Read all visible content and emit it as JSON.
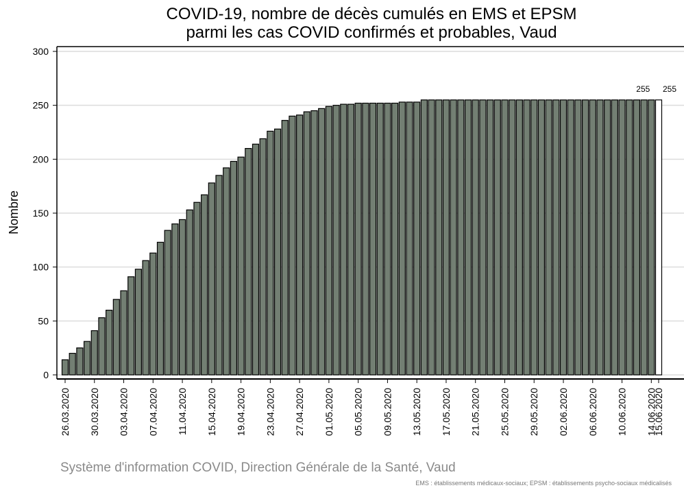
{
  "chart_data": {
    "type": "bar",
    "title": [
      "COVID-19, nombre de décès cumulés en EMS et EPSM",
      "parmi les cas COVID confirmés et probables, Vaud"
    ],
    "y_label": "Nombre",
    "source": "Système d'information COVID, Direction Générale de la Santé, Vaud",
    "note": "EMS : établissements médicaux-sociaux; EPSM : établissements psycho-sociaux médicalisés",
    "categories": [
      "26.03.2020",
      null,
      null,
      null,
      "30.03.2020",
      null,
      null,
      null,
      "03.04.2020",
      null,
      null,
      null,
      "07.04.2020",
      null,
      null,
      null,
      "11.04.2020",
      null,
      null,
      null,
      "15.04.2020",
      null,
      null,
      null,
      "19.04.2020",
      null,
      null,
      null,
      "23.04.2020",
      null,
      null,
      null,
      "27.04.2020",
      null,
      null,
      null,
      "01.05.2020",
      null,
      null,
      null,
      "05.05.2020",
      null,
      null,
      null,
      "09.05.2020",
      null,
      null,
      null,
      "13.05.2020",
      null,
      null,
      null,
      "17.05.2020",
      null,
      null,
      null,
      "21.05.2020",
      null,
      null,
      null,
      "25.05.2020",
      null,
      null,
      null,
      "29.05.2020",
      null,
      null,
      null,
      "02.06.2020",
      null,
      null,
      null,
      "06.06.2020",
      null,
      null,
      null,
      "10.06.2020",
      null,
      null,
      null,
      "14.06.2020",
      "15.06.2020"
    ],
    "values": [
      14,
      20,
      25,
      31,
      41,
      53,
      60,
      70,
      78,
      91,
      98,
      106,
      113,
      123,
      134,
      140,
      144,
      153,
      160,
      167,
      178,
      185,
      192,
      198,
      202,
      210,
      214,
      219,
      226,
      228,
      236,
      240,
      241,
      244,
      245,
      247,
      249,
      250,
      251,
      251,
      252,
      252,
      252,
      252,
      252,
      252,
      253,
      253,
      253,
      255,
      255,
      255,
      255,
      255,
      255,
      255,
      255,
      255,
      255,
      255,
      255,
      255,
      255,
      255,
      255,
      255,
      255,
      255,
      255,
      255,
      255,
      255,
      255,
      255,
      255,
      255,
      255,
      255,
      255,
      255,
      255,
      255
    ],
    "value_labels": [
      null,
      null,
      null,
      null,
      null,
      null,
      null,
      null,
      null,
      null,
      null,
      null,
      null,
      null,
      null,
      null,
      null,
      null,
      null,
      null,
      null,
      null,
      null,
      null,
      null,
      null,
      null,
      null,
      null,
      null,
      null,
      null,
      null,
      null,
      null,
      null,
      null,
      null,
      null,
      null,
      null,
      null,
      null,
      null,
      null,
      null,
      null,
      null,
      null,
      null,
      null,
      null,
      null,
      null,
      null,
      null,
      null,
      null,
      null,
      null,
      null,
      null,
      null,
      null,
      null,
      null,
      null,
      null,
      null,
      null,
      null,
      null,
      null,
      null,
      null,
      null,
      null,
      null,
      null,
      null,
      "255",
      "255"
    ],
    "colors": [
      "#737f73",
      "#737f73",
      "#737f73",
      "#737f73",
      "#737f73",
      "#737f73",
      "#737f73",
      "#737f73",
      "#737f73",
      "#737f73",
      "#737f73",
      "#737f73",
      "#737f73",
      "#737f73",
      "#737f73",
      "#737f73",
      "#737f73",
      "#737f73",
      "#737f73",
      "#737f73",
      "#737f73",
      "#737f73",
      "#737f73",
      "#737f73",
      "#737f73",
      "#737f73",
      "#737f73",
      "#737f73",
      "#737f73",
      "#737f73",
      "#737f73",
      "#737f73",
      "#737f73",
      "#737f73",
      "#737f73",
      "#737f73",
      "#737f73",
      "#737f73",
      "#737f73",
      "#737f73",
      "#737f73",
      "#737f73",
      "#737f73",
      "#737f73",
      "#737f73",
      "#737f73",
      "#737f73",
      "#737f73",
      "#737f73",
      "#737f73",
      "#737f73",
      "#737f73",
      "#737f73",
      "#737f73",
      "#737f73",
      "#737f73",
      "#737f73",
      "#737f73",
      "#737f73",
      "#737f73",
      "#737f73",
      "#737f73",
      "#737f73",
      "#737f73",
      "#737f73",
      "#737f73",
      "#737f73",
      "#737f73",
      "#737f73",
      "#737f73",
      "#737f73",
      "#737f73",
      "#737f73",
      "#737f73",
      "#737f73",
      "#737f73",
      "#737f73",
      "#737f73",
      "#737f73",
      "#737f73",
      "#737f73",
      "#ffffff"
    ],
    "ylim": [
      0,
      300
    ],
    "yticks": [
      0,
      50,
      100,
      150,
      200,
      250,
      300
    ],
    "grid": true
  }
}
